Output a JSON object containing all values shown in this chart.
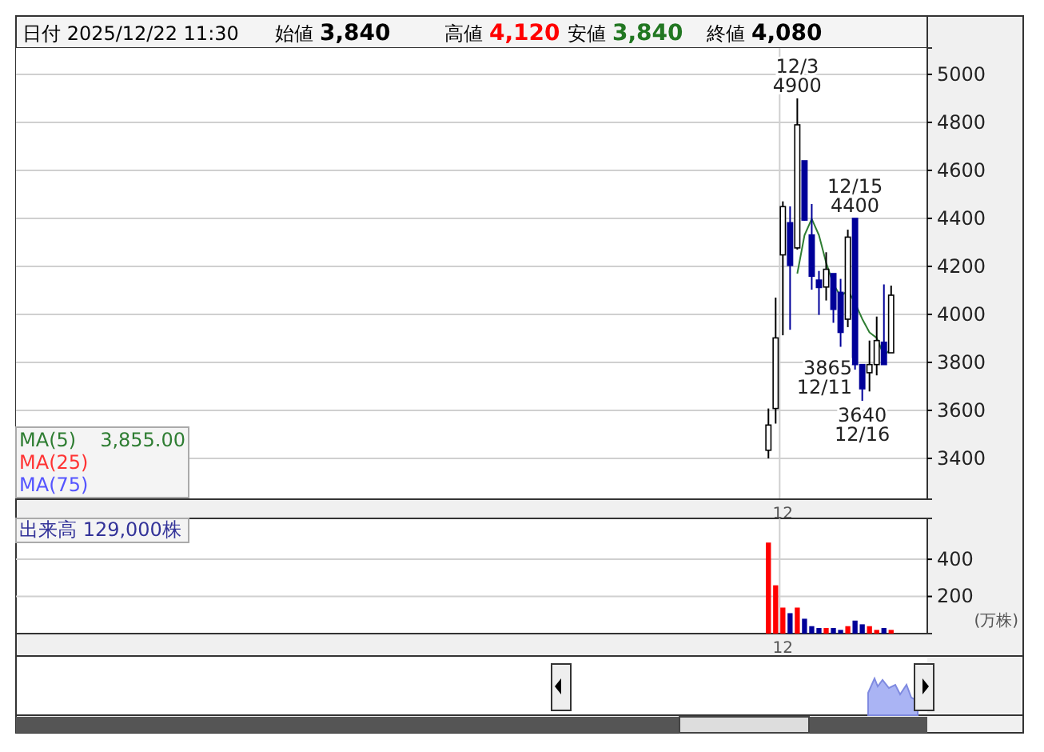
{
  "chart_data": [
    {
      "type": "candlestick",
      "annotations": [
        "日付 2025/12/22 11:30",
        "始値",
        "3,840",
        "高値",
        "4,120",
        "安値",
        "3,840",
        "終値",
        "4,080",
        "3,855.00",
        {
          "text": "12/3\n4900",
          "y": 4900
        },
        {
          "text": "12/15\n4400",
          "y": 4400
        },
        "3865\n12/11",
        {
          "text": "3640\n12/16",
          "y": 3640
        }
      ],
      "categories": [
        null,
        null,
        "12",
        null,
        null,
        null,
        null,
        null,
        null,
        null,
        null,
        null,
        null,
        null,
        null,
        null,
        null,
        null
      ],
      "ohlc": [
        [
          3434,
          3608,
          3400,
          3539
        ],
        [
          3608,
          4070,
          3545,
          3902
        ],
        [
          4248,
          4471,
          3913,
          4449
        ],
        [
          4382,
          4450,
          3936,
          4204
        ],
        [
          4277,
          4900,
          4270,
          4790
        ],
        [
          4640,
          4640,
          4390,
          4393
        ],
        [
          4331,
          4460,
          4103,
          4159
        ],
        [
          4143,
          4181,
          3998,
          4112
        ],
        [
          4114,
          4259,
          4058,
          4188
        ],
        [
          4170,
          4170,
          3965,
          4021
        ],
        [
          4092,
          4148,
          3865,
          3925
        ],
        [
          3980,
          4353,
          3947,
          4322
        ],
        [
          4400,
          4400,
          3770,
          3791
        ],
        [
          3791,
          3791,
          3640,
          3690
        ],
        [
          3757,
          3891,
          3679,
          3791
        ],
        [
          3791,
          3991,
          3746,
          3891
        ],
        [
          3884,
          4125,
          3790,
          3791
        ],
        [
          3840,
          4120,
          3840,
          4080
        ]
      ],
      "series": [
        {
          "name": "MA(5)",
          "type": "line",
          "color": "#2e7d32",
          "values": [
            null,
            null,
            null,
            null,
            4170,
            4330,
            4398,
            4330,
            4215,
            4126,
            4076,
            4099,
            4048,
            3981,
            3925,
            3902,
            3830,
            3855
          ]
        },
        {
          "name": "MA(25)",
          "type": "line",
          "color": "#ff3333",
          "values": [
            null,
            null,
            null,
            null,
            null,
            null,
            null,
            null,
            null,
            null,
            null,
            null,
            null,
            null,
            null,
            null,
            null,
            null
          ]
        },
        {
          "name": "MA(75)",
          "type": "line",
          "color": "#5555ff",
          "values": [
            null,
            null,
            null,
            null,
            null,
            null,
            null,
            null,
            null,
            null,
            null,
            null,
            null,
            null,
            null,
            null,
            null,
            null
          ]
        }
      ],
      "ylim": [
        3230,
        5110
      ],
      "yticks": [
        3400,
        3600,
        3800,
        4000,
        4200,
        4400,
        4600,
        4800,
        5000
      ],
      "grid": true,
      "legend": "bottom left"
    },
    {
      "type": "bar",
      "ylabel": "(万株)",
      "annotations": [
        "出来高 129,000株"
      ],
      "categories": [
        null,
        null,
        "12",
        null,
        null,
        null,
        null,
        null,
        null,
        null,
        null,
        null,
        null,
        null,
        null,
        null,
        null,
        null
      ],
      "values": [
        490,
        260,
        140,
        110,
        140,
        80,
        40,
        30,
        30,
        30,
        20,
        40,
        70,
        50,
        40,
        20,
        30,
        20
      ],
      "colors": [
        "#ff0000",
        "#ff0000",
        "#ff0000",
        "#000099",
        "#ff0000",
        "#000099",
        "#000099",
        "#000099",
        "#ff0000",
        "#000099",
        "#000099",
        "#ff0000",
        "#000099",
        "#000099",
        "#ff0000",
        "#ff0000",
        "#000099",
        "#ff0000"
      ],
      "ylim": [
        0,
        620
      ],
      "yticks": [
        200,
        400
      ],
      "grid": true
    }
  ]
}
